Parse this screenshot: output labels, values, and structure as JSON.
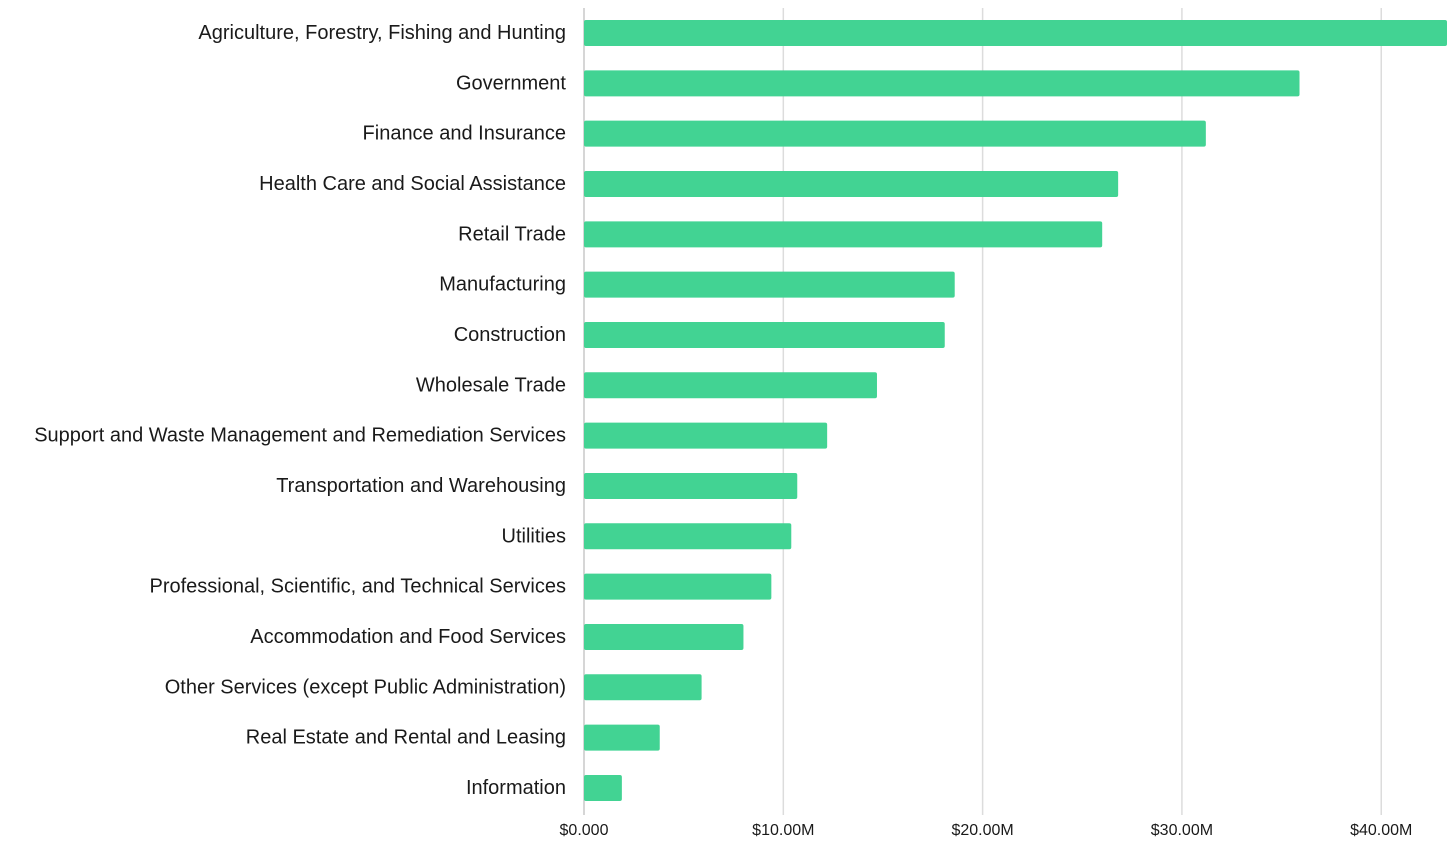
{
  "chart_data": {
    "type": "bar",
    "orientation": "horizontal",
    "title": "",
    "xlabel": "",
    "ylabel": "",
    "categories": [
      "Agriculture, Forestry, Fishing and Hunting",
      "Government",
      "Finance and Insurance",
      "Health Care and Social Assistance",
      "Retail Trade",
      "Manufacturing",
      "Construction",
      "Wholesale Trade",
      "Support and Waste Management and Remediation Services",
      "Transportation and Warehousing",
      "Utilities",
      "Professional, Scientific, and Technical Services",
      "Accommodation and Food Services",
      "Other Services (except Public Administration)",
      "Real Estate and Rental and Leasing",
      "Information"
    ],
    "values": [
      43.3,
      35.9,
      31.2,
      26.8,
      26.0,
      18.6,
      18.1,
      14.7,
      12.2,
      10.7,
      10.4,
      9.4,
      8.0,
      5.9,
      3.8,
      1.9
    ],
    "value_unit": "millions USD",
    "xlim": [
      0,
      43.3
    ],
    "xticks": [
      0,
      10,
      20,
      30,
      40
    ],
    "xtick_labels": [
      "$0.000",
      "$10.00M",
      "$20.00M",
      "$30.00M",
      "$40.00M"
    ],
    "grid": true,
    "legend": "none",
    "bar_color": "#42d393",
    "grid_color": "#dcdcdc"
  }
}
